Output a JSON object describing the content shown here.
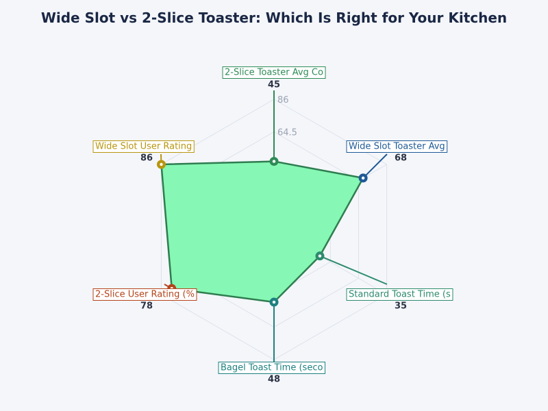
{
  "chart_data": {
    "type": "radar",
    "title": "Wide Slot vs 2-Slice Toaster: Which Is Right for Your Kitchen",
    "scale_max": 86,
    "tick_labels": [
      "64.5",
      "86"
    ],
    "grid_levels": 4,
    "fill_color": "#86f7b4",
    "outline_color": "#2e7d4f",
    "axes": [
      {
        "label": "2-Slice Toaster Avg Co",
        "value": 45,
        "color": "#2e8b57"
      },
      {
        "label": "Wide Slot Toaster Avg",
        "value": 68,
        "color": "#1f5a96"
      },
      {
        "label": "Standard Toast Time (s",
        "value": 35,
        "color": "#2e8b6e"
      },
      {
        "label": "Bagel Toast Time (seco",
        "value": 48,
        "color": "#1e8080"
      },
      {
        "label": "2-Slice User Rating (%",
        "value": 78,
        "color": "#b5441b"
      },
      {
        "label": "Wide Slot User Rating",
        "value": 86,
        "color": "#b8960f"
      }
    ]
  }
}
